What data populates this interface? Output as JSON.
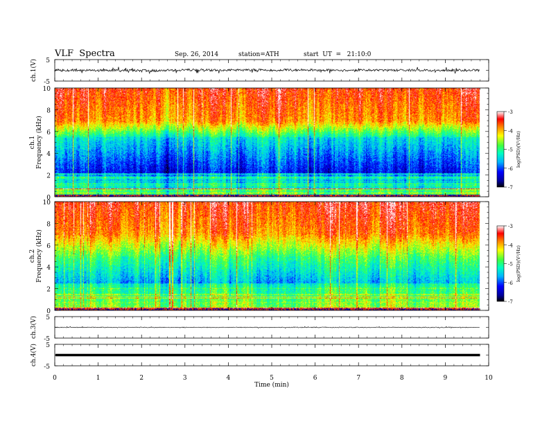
{
  "header": {
    "title": "VLF  Spectra",
    "date": "Sep. 26, 2014",
    "station": "station=ATH",
    "start": "start  UT  =   21:10:0"
  },
  "chart_data": [
    {
      "type": "line",
      "panel": "ch1-waveform",
      "ylabel": "ch.1(V)",
      "ylim": [
        -5,
        5
      ],
      "yticks": [
        "5",
        "-5"
      ],
      "xlim": [
        0,
        10
      ],
      "trace_mean": 0,
      "trace_color": "#000000"
    },
    {
      "type": "heatmap",
      "panel": "ch1-spectrogram",
      "ylabel_lines": [
        "ch.1",
        "Frequency (kHz)"
      ],
      "ylim": [
        0,
        10
      ],
      "yticks": [
        "0",
        "2",
        "4",
        "6",
        "8",
        "10"
      ],
      "xlim": [
        0,
        10
      ],
      "data_end_min": 9.8,
      "colorbar": {
        "label": "log(PSD)(V²/Hz)",
        "range": [
          -7,
          -3
        ],
        "ticks": [
          "-3",
          "-4",
          "-5",
          "-6",
          "-7"
        ]
      }
    },
    {
      "type": "heatmap",
      "panel": "ch2-spectrogram",
      "ylabel_lines": [
        "ch.2",
        "Frequency (kHz)"
      ],
      "ylim": [
        0,
        10
      ],
      "yticks": [
        "0",
        "2",
        "4",
        "6",
        "8",
        "10"
      ],
      "xlim": [
        0,
        10
      ],
      "data_end_min": 9.8,
      "colorbar": {
        "label": "log(PSD)(V²/Hz)",
        "range": [
          -7,
          -3
        ],
        "ticks": [
          "-3",
          "-4",
          "-5",
          "-6",
          "-7"
        ]
      }
    },
    {
      "type": "line",
      "panel": "ch3-waveform",
      "ylabel": "ch.3(V)",
      "ylim": [
        -5,
        5
      ],
      "yticks": [
        "5",
        "-5"
      ],
      "xlim": [
        0,
        10
      ],
      "trace_mean": 0
    },
    {
      "type": "line",
      "panel": "ch4-waveform",
      "ylabel": "ch.4(V)",
      "ylim": [
        -5,
        5
      ],
      "yticks": [
        "5",
        "-5"
      ],
      "xlim": [
        0,
        10
      ],
      "trace_mean": 0,
      "xlabel": "Time  (min)",
      "xticks": [
        "0",
        "1",
        "2",
        "3",
        "4",
        "5",
        "6",
        "7",
        "8",
        "9",
        "10"
      ]
    }
  ]
}
